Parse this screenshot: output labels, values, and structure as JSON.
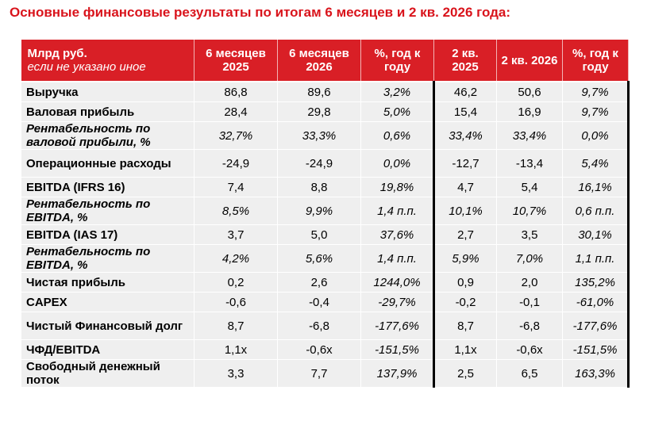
{
  "title": "Основные финансовые результаты по итогам 6 месяцев и 2 кв. 2026 года:",
  "header": {
    "label_main": "Млрд руб.",
    "label_sub": "если не указано иное",
    "col1": "6 месяцев 2025",
    "col2": "6 месяцев 2026",
    "col3": "%, год к году",
    "col4": "2 кв. 2025",
    "col5": "2 кв. 2026",
    "col6": "%, год к году"
  },
  "rows": [
    {
      "label": "Выручка",
      "italic": false,
      "tall": false,
      "v": [
        "86,8",
        "89,6",
        "3,2%",
        "46,2",
        "50,6",
        "9,7%"
      ]
    },
    {
      "label": "Валовая прибыль",
      "italic": false,
      "tall": false,
      "v": [
        "28,4",
        "29,8",
        "5,0%",
        "15,4",
        "16,9",
        "9,7%"
      ]
    },
    {
      "label": "Рентабельность по валовой прибыли, %",
      "italic": true,
      "tall": true,
      "v": [
        "32,7%",
        "33,3%",
        "0,6%",
        "33,4%",
        "33,4%",
        "0,0%"
      ]
    },
    {
      "label": "Операционные расходы",
      "italic": false,
      "tall": true,
      "v": [
        "-24,9",
        "-24,9",
        "0,0%",
        "-12,7",
        "-13,4",
        "5,4%"
      ]
    },
    {
      "label": "EBITDA (IFRS 16)",
      "italic": false,
      "tall": false,
      "v": [
        "7,4",
        "8,8",
        "19,8%",
        "4,7",
        "5,4",
        "16,1%"
      ]
    },
    {
      "label": "Рентабельность по EBITDA, %",
      "italic": true,
      "tall": true,
      "v": [
        "8,5%",
        "9,9%",
        "1,4 п.п.",
        "10,1%",
        "10,7%",
        "0,6 п.п."
      ]
    },
    {
      "label": "EBITDA (IAS 17)",
      "italic": false,
      "tall": false,
      "v": [
        "3,7",
        "5,0",
        "37,6%",
        "2,7",
        "3,5",
        "30,1%"
      ]
    },
    {
      "label": "Рентабельность по EBITDA, %",
      "italic": true,
      "tall": true,
      "v": [
        "4,2%",
        "5,6%",
        "1,4 п.п.",
        "5,9%",
        "7,0%",
        "1,1 п.п."
      ]
    },
    {
      "label": "Чистая прибыль",
      "italic": false,
      "tall": false,
      "v": [
        "0,2",
        "2,6",
        "1244,0%",
        "0,9",
        "2,0",
        "135,2%"
      ]
    },
    {
      "label": "CAPEX",
      "italic": false,
      "tall": false,
      "v": [
        "-0,6",
        "-0,4",
        "-29,7%",
        "-0,2",
        "-0,1",
        "-61,0%"
      ]
    },
    {
      "label": "Чистый Финансовый долг",
      "italic": false,
      "tall": true,
      "v": [
        "8,7",
        "-6,8",
        "-177,6%",
        "8,7",
        "-6,8",
        "-177,6%"
      ]
    },
    {
      "label": "ЧФД/EBITDA",
      "italic": false,
      "tall": false,
      "v": [
        "1,1x",
        "-0,6x",
        "-151,5%",
        "1,1x",
        "-0,6x",
        "-151,5%"
      ]
    },
    {
      "label": "Свободный денежный поток",
      "italic": false,
      "tall": true,
      "v": [
        "3,3",
        "7,7",
        "137,9%",
        "2,5",
        "6,5",
        "163,3%"
      ]
    }
  ]
}
